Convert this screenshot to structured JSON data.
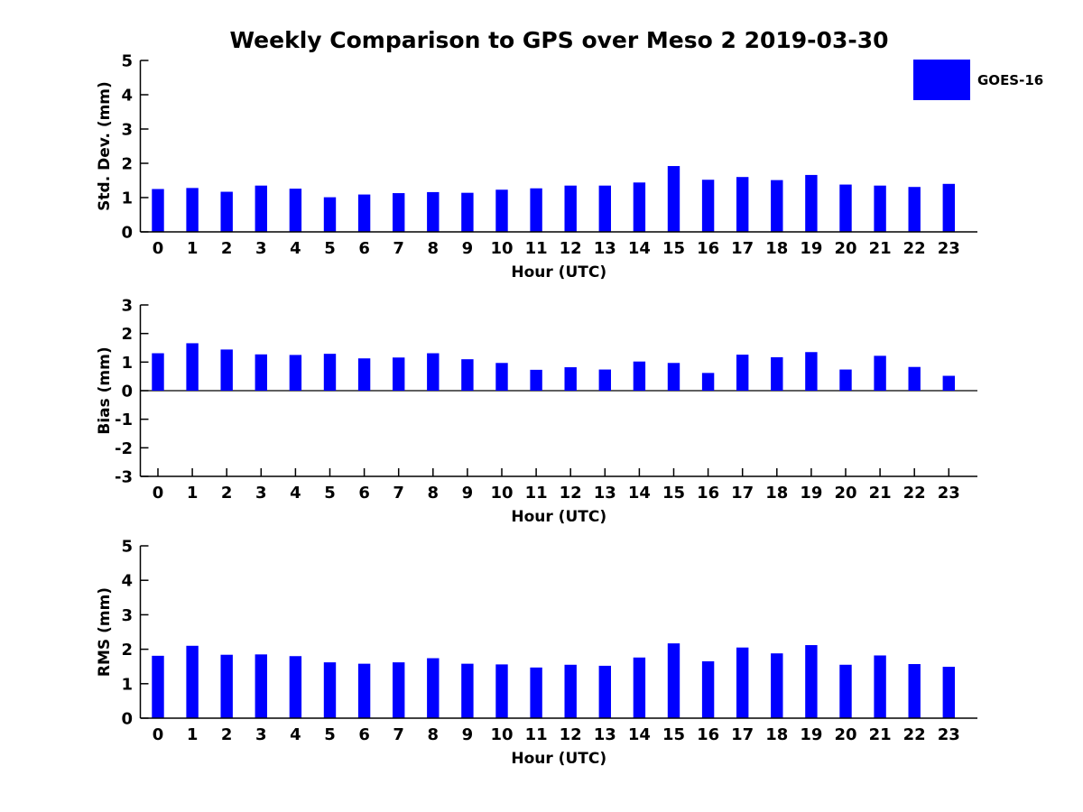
{
  "figure": {
    "title": "Weekly Comparison to GPS over Meso 2 2019-03-30",
    "background_color": "#ffffff",
    "text_color": "#000000",
    "axis_color": "#000000"
  },
  "legend": {
    "label": "GOES-16",
    "swatch_color": "#0000ff",
    "position": "figure-top-right"
  },
  "chart_data": [
    {
      "type": "bar",
      "id": "std-dev",
      "ylabel": "Std. Dev. (mm)",
      "xlabel": "Hour (UTC)",
      "categories": [
        "0",
        "1",
        "2",
        "3",
        "4",
        "5",
        "6",
        "7",
        "8",
        "9",
        "10",
        "11",
        "12",
        "13",
        "14",
        "15",
        "16",
        "17",
        "18",
        "19",
        "20",
        "21",
        "22",
        "23"
      ],
      "series": [
        {
          "name": "GOES-16",
          "values": [
            1.25,
            1.28,
            1.17,
            1.35,
            1.26,
            1.01,
            1.09,
            1.13,
            1.16,
            1.14,
            1.23,
            1.27,
            1.35,
            1.35,
            1.44,
            1.92,
            1.52,
            1.6,
            1.51,
            1.66,
            1.38,
            1.35,
            1.31,
            1.4
          ]
        }
      ],
      "ylim": [
        0,
        5
      ],
      "yticks": [
        0,
        1,
        2,
        3,
        4,
        5
      ],
      "bar_color": "#0000ff",
      "grid": false
    },
    {
      "type": "bar",
      "id": "bias",
      "ylabel": "Bias (mm)",
      "xlabel": "Hour (UTC)",
      "categories": [
        "0",
        "1",
        "2",
        "3",
        "4",
        "5",
        "6",
        "7",
        "8",
        "9",
        "10",
        "11",
        "12",
        "13",
        "14",
        "15",
        "16",
        "17",
        "18",
        "19",
        "20",
        "21",
        "22",
        "23"
      ],
      "series": [
        {
          "name": "GOES-16",
          "values": [
            1.31,
            1.66,
            1.44,
            1.27,
            1.25,
            1.29,
            1.13,
            1.16,
            1.31,
            1.1,
            0.97,
            0.73,
            0.82,
            0.74,
            1.02,
            0.97,
            0.62,
            1.26,
            1.17,
            1.35,
            0.74,
            1.22,
            0.83,
            0.52
          ]
        }
      ],
      "ylim": [
        -3,
        3
      ],
      "yticks": [
        -3,
        -2,
        -1,
        0,
        1,
        2,
        3
      ],
      "zero_line": true,
      "bar_color": "#0000ff",
      "grid": false
    },
    {
      "type": "bar",
      "id": "rms",
      "ylabel": "RMS (mm)",
      "xlabel": "Hour (UTC)",
      "categories": [
        "0",
        "1",
        "2",
        "3",
        "4",
        "5",
        "6",
        "7",
        "8",
        "9",
        "10",
        "11",
        "12",
        "13",
        "14",
        "15",
        "16",
        "17",
        "18",
        "19",
        "20",
        "21",
        "22",
        "23"
      ],
      "series": [
        {
          "name": "GOES-16",
          "values": [
            1.81,
            2.1,
            1.84,
            1.85,
            1.8,
            1.62,
            1.58,
            1.62,
            1.74,
            1.58,
            1.56,
            1.47,
            1.55,
            1.52,
            1.76,
            2.17,
            1.65,
            2.05,
            1.88,
            2.12,
            1.55,
            1.82,
            1.57,
            1.49
          ]
        }
      ],
      "ylim": [
        0,
        5
      ],
      "yticks": [
        0,
        1,
        2,
        3,
        4,
        5
      ],
      "bar_color": "#0000ff",
      "grid": false
    }
  ]
}
